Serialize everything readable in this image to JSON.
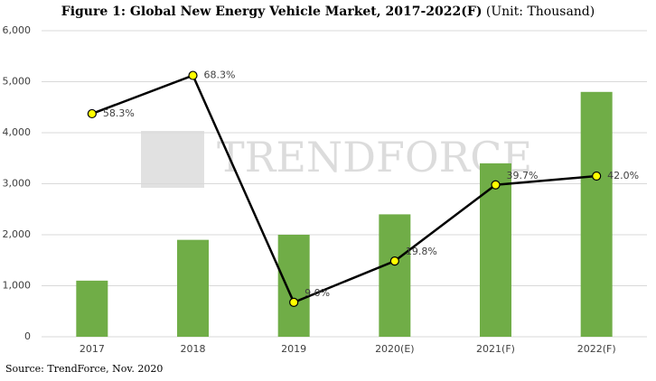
{
  "chart_data": {
    "type": "bar",
    "title": "Figure 1: Global New Energy Vehicle Market, 2017-2022(F)",
    "subtitle": "(Unit: Thousand)",
    "source": "Source: TrendForce, Nov. 2020",
    "watermark": "TRENDFORCE",
    "categories": [
      "2017",
      "2018",
      "2019",
      "2020(E)",
      "2021(F)",
      "2022(F)"
    ],
    "series": [
      {
        "type": "bar",
        "color": "#70ad47",
        "values": [
          1100,
          1900,
          2000,
          2400,
          3400,
          4800
        ]
      },
      {
        "type": "line",
        "axis": "y2",
        "color": "#000000",
        "marker_color": "#ffff00",
        "values": [
          58.3,
          68.3,
          9.0,
          19.8,
          39.7,
          42.0
        ],
        "value_labels": [
          "58.3%",
          "68.3%",
          "9.0%",
          "19.8%",
          "39.7%",
          "42.0%"
        ]
      }
    ],
    "ylim": [
      0,
      6000
    ],
    "yticks": [
      0,
      {
        "value": 1000,
        "label": "1,000"
      },
      {
        "value": 2000,
        "label": "2,000"
      },
      {
        "value": 3000,
        "label": "3,000"
      },
      {
        "value": 4000,
        "label": "4,000"
      },
      {
        "value": 5000,
        "label": "5,000"
      },
      {
        "value": 6000,
        "label": "6,000"
      }
    ],
    "y2lim": [
      0,
      80
    ],
    "grid": true
  }
}
